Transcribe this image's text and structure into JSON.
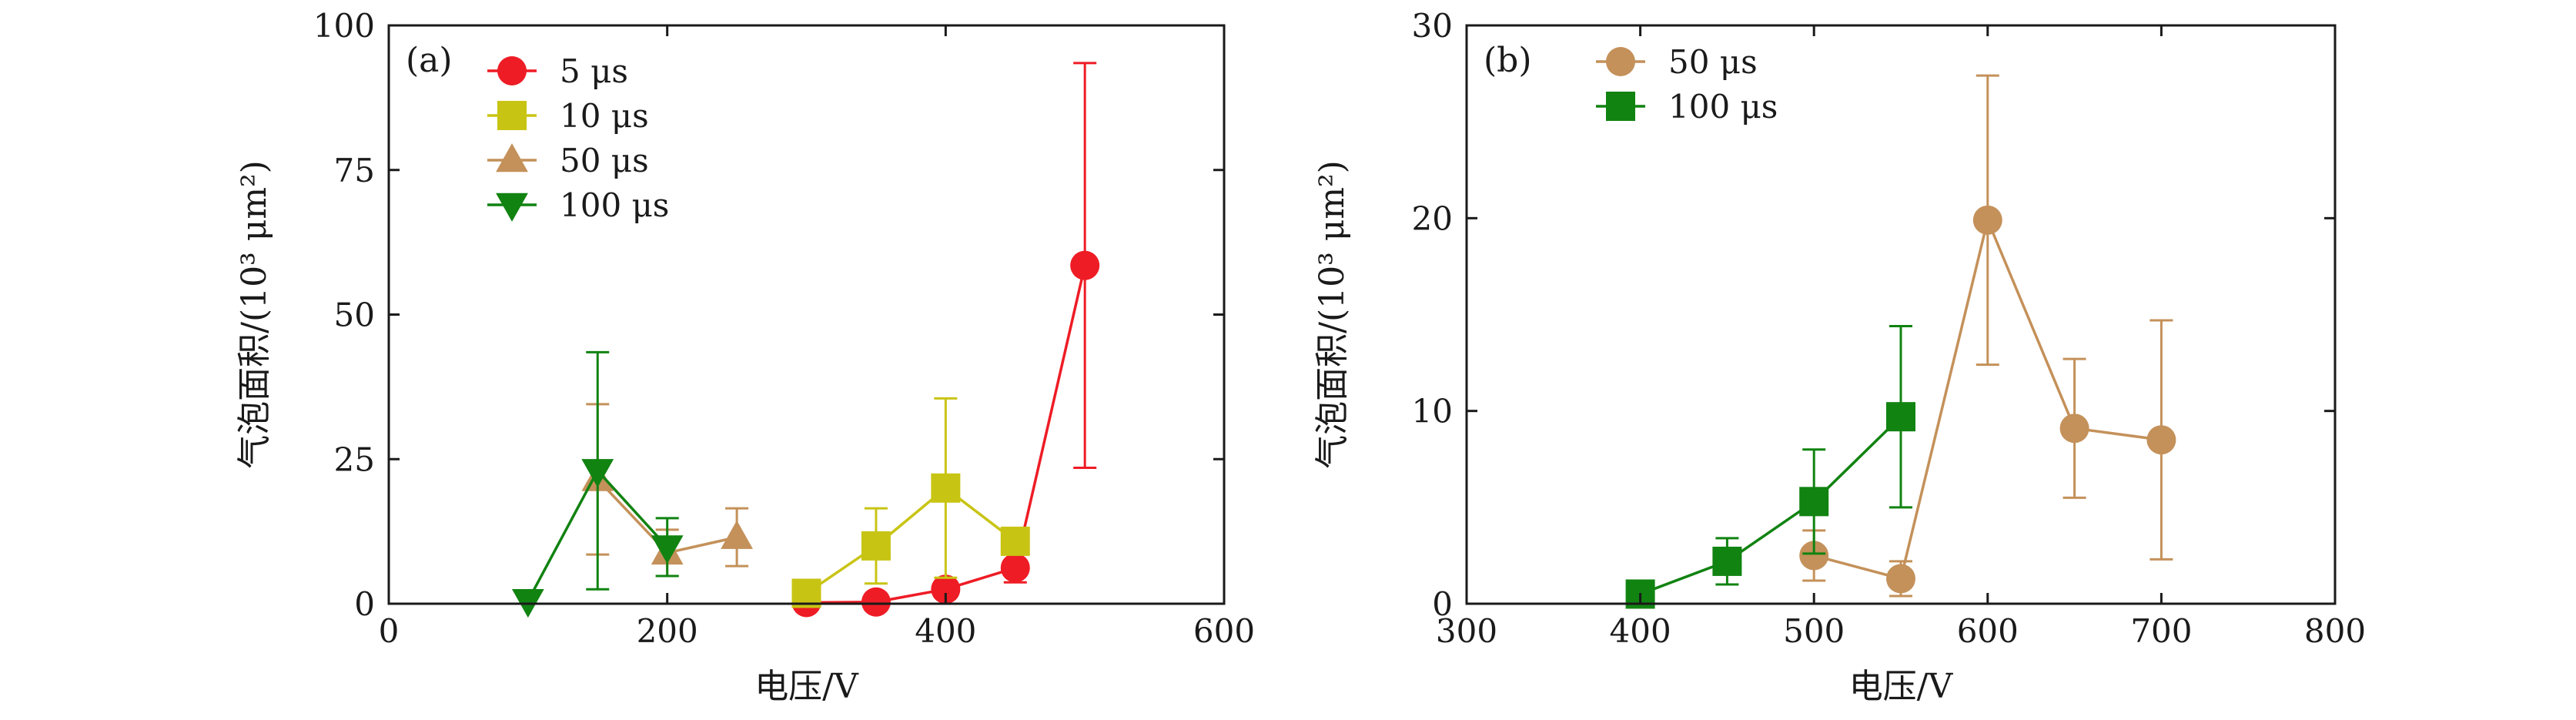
{
  "chart_data": [
    {
      "type": "line",
      "panel_label": "(a)",
      "xlabel": "电压/V",
      "ylabel": "气泡面积/(10³ μm²)",
      "xlim": [
        0,
        600
      ],
      "ylim": [
        0,
        100
      ],
      "xticks": [
        0,
        200,
        400,
        600
      ],
      "yticks": [
        0,
        25,
        50,
        75,
        100
      ],
      "grid": false,
      "legend_position": "top-left",
      "series": [
        {
          "name": "5 μs",
          "color": "#ee1c25",
          "marker": "circle",
          "x": [
            300,
            350,
            400,
            450,
            500
          ],
          "y": [
            0.2,
            0.3,
            2.5,
            6.2,
            58.5
          ],
          "err_low": [
            0.1,
            0.1,
            0.5,
            2.5,
            35.0
          ],
          "err_high": [
            0.1,
            0.1,
            0.5,
            2.5,
            35.0
          ]
        },
        {
          "name": "10 μs",
          "color": "#c8c414",
          "marker": "square",
          "x": [
            300,
            350,
            400,
            450
          ],
          "y": [
            1.8,
            10.0,
            20.0,
            10.8
          ],
          "err_low": [
            1.2,
            6.5,
            15.5,
            0.5
          ],
          "err_high": [
            1.2,
            6.5,
            15.5,
            0.5
          ]
        },
        {
          "name": "50 μs",
          "color": "#c4915a",
          "marker": "triangle-up",
          "x": [
            150,
            200,
            250
          ],
          "y": [
            21.5,
            8.8,
            11.5
          ],
          "err_low": [
            13.0,
            4.0,
            5.0
          ],
          "err_high": [
            13.0,
            4.0,
            5.0
          ]
        },
        {
          "name": "100 μs",
          "color": "#118311",
          "marker": "triangle-down",
          "x": [
            100,
            150,
            200
          ],
          "y": [
            0.5,
            23.0,
            9.8
          ],
          "err_low": [
            0.0,
            20.5,
            5.0
          ],
          "err_high": [
            0.0,
            20.5,
            5.0
          ]
        }
      ]
    },
    {
      "type": "line",
      "panel_label": "(b)",
      "xlabel": "电压/V",
      "ylabel": "气泡面积/(10³ μm²)",
      "xlim": [
        300,
        800
      ],
      "ylim": [
        0,
        30
      ],
      "xticks": [
        300,
        400,
        500,
        600,
        700,
        800
      ],
      "yticks": [
        0,
        10,
        20,
        30
      ],
      "grid": false,
      "legend_position": "top-left",
      "series": [
        {
          "name": "50 μs",
          "color": "#c4915a",
          "marker": "circle",
          "x": [
            500,
            550,
            600,
            650,
            700
          ],
          "y": [
            2.5,
            1.3,
            19.9,
            9.1,
            8.5
          ],
          "err_low": [
            1.3,
            0.9,
            7.5,
            3.6,
            6.2
          ],
          "err_high": [
            1.3,
            0.9,
            7.5,
            3.6,
            6.2
          ]
        },
        {
          "name": "100 μs",
          "color": "#118311",
          "marker": "square",
          "x": [
            400,
            450,
            500,
            550
          ],
          "y": [
            0.5,
            2.2,
            5.3,
            9.7
          ],
          "err_low": [
            0.0,
            1.2,
            2.7,
            4.7
          ],
          "err_high": [
            0.0,
            1.2,
            2.7,
            4.7
          ]
        }
      ]
    }
  ]
}
